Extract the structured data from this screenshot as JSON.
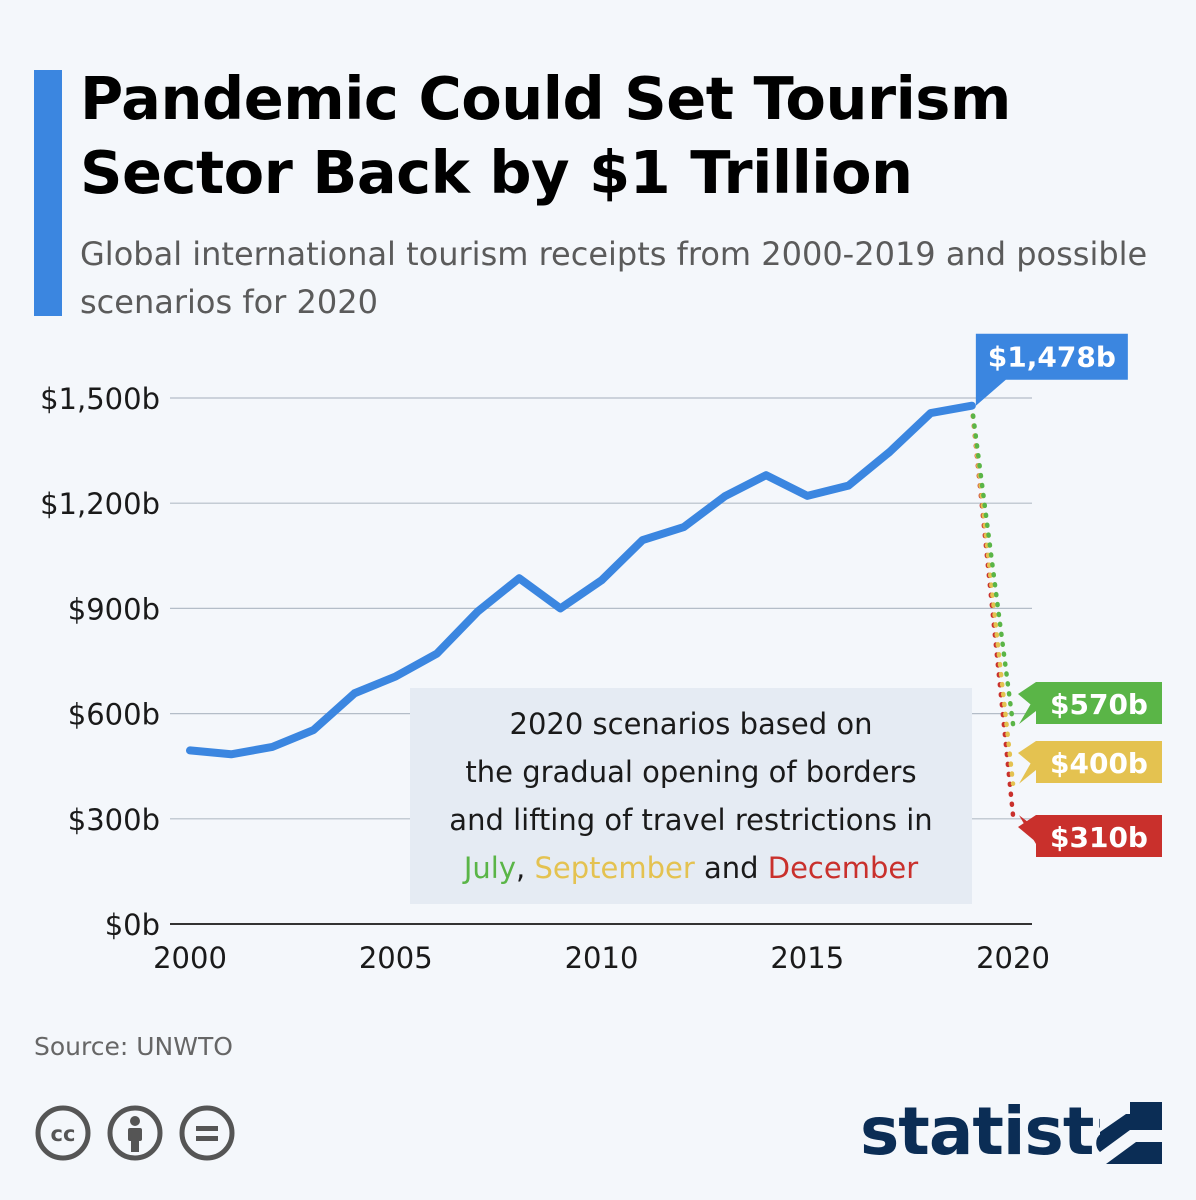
{
  "header": {
    "title": "Pandemic Could Set Tourism Sector Back by $1 Trillion",
    "subtitle": "Global international tourism receipts from 2000-2019 and possible scenarios for 2020"
  },
  "chart_data": {
    "type": "line",
    "title": "Pandemic Could Set Tourism Sector Back by $1 Trillion",
    "xlabel": "",
    "ylabel": "",
    "x_range": [
      2000,
      2020
    ],
    "ylim": [
      0,
      1500
    ],
    "x_ticks": [
      "2000",
      "2005",
      "2010",
      "2015",
      "2020"
    ],
    "y_ticks": [
      "$0b",
      "$300b",
      "$600b",
      "$900b",
      "$1,200b",
      "$1,500b"
    ],
    "grid": true,
    "series": [
      {
        "name": "Global international tourism receipts",
        "color": "#3b86e0",
        "x": [
          2000,
          2001,
          2002,
          2003,
          2004,
          2005,
          2006,
          2007,
          2008,
          2009,
          2010,
          2011,
          2012,
          2013,
          2014,
          2015,
          2016,
          2017,
          2018,
          2019
        ],
        "values": [
          495,
          484,
          505,
          553,
          658,
          706,
          771,
          892,
          986,
          900,
          980,
          1095,
          1132,
          1220,
          1280,
          1221,
          1250,
          1346,
          1457,
          1478
        ]
      }
    ],
    "scenarios": [
      {
        "name": "July",
        "color": "#5ab547",
        "from": [
          2019,
          1478
        ],
        "to": [
          2020,
          570
        ],
        "label": "$570b"
      },
      {
        "name": "September",
        "color": "#e4c250",
        "from": [
          2019,
          1478
        ],
        "to": [
          2020,
          400
        ],
        "label": "$400b"
      },
      {
        "name": "December",
        "color": "#c9302c",
        "from": [
          2019,
          1478
        ],
        "to": [
          2020,
          310
        ],
        "label": "$310b"
      }
    ],
    "annotations": [
      {
        "label": "$1,478b",
        "x": 2019,
        "y": 1478,
        "color": "#3b86e0"
      }
    ]
  },
  "note": {
    "line1": "2020 scenarios based on",
    "line2": "the gradual opening of borders",
    "line3": "and lifting of travel restrictions in",
    "july": "July",
    "comma": ",",
    "september": "September",
    "and": "and",
    "december": "December"
  },
  "footer": {
    "source": "Source: UNWTO",
    "brand": "statista",
    "license_icons": [
      "cc-icon",
      "by-icon",
      "nd-icon"
    ]
  }
}
